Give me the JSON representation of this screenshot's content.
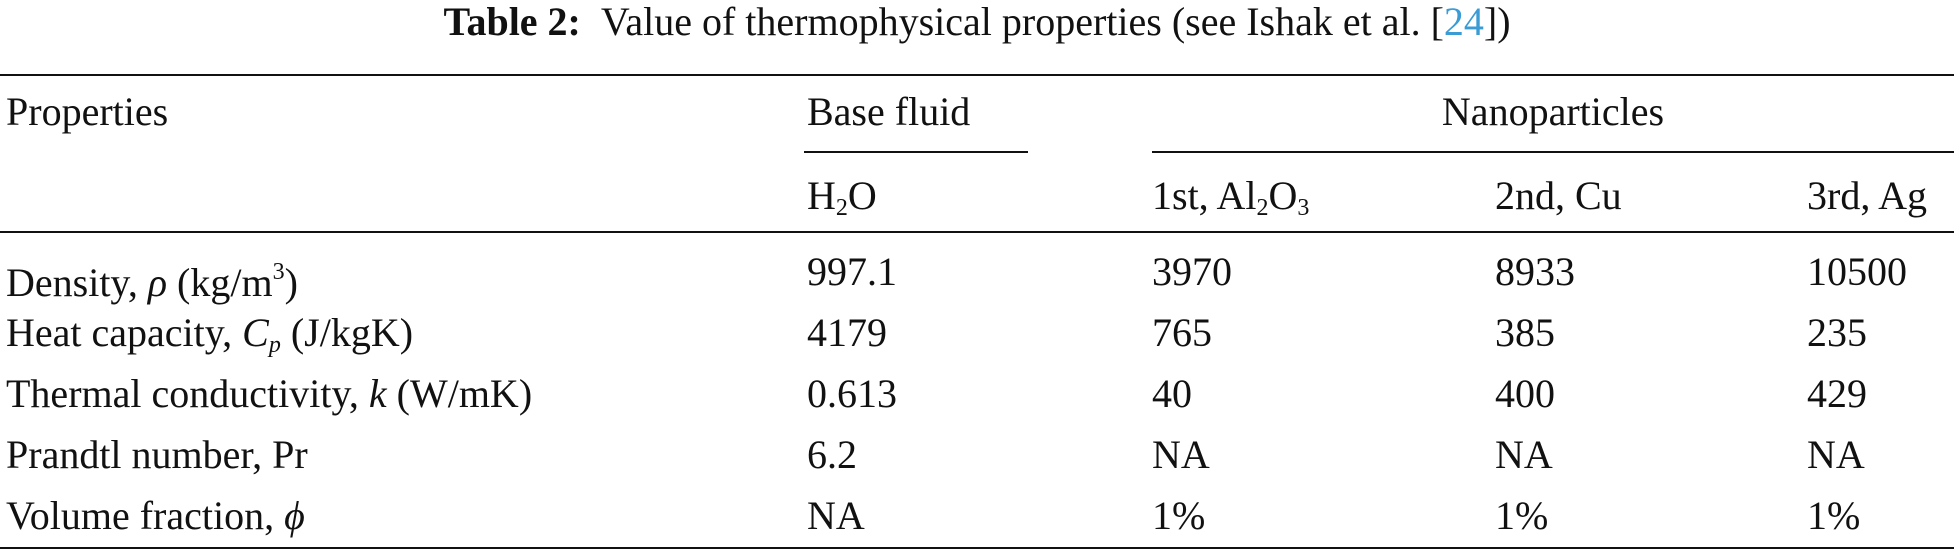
{
  "title": {
    "label": "Table 2:",
    "text": "Value of thermophysical properties (see Ishak et al. [",
    "ref": "24",
    "close": "])"
  },
  "header": {
    "properties": "Properties",
    "base_fluid": "Base fluid",
    "nanoparticles": "Nanoparticles",
    "columns": [
      [
        {
          "t": "H"
        },
        {
          "t": "2",
          "sub": true
        },
        {
          "t": "O"
        }
      ],
      [
        {
          "t": "1st, Al"
        },
        {
          "t": "2",
          "sub": true
        },
        {
          "t": "O"
        },
        {
          "t": "3",
          "sub": true
        }
      ],
      [
        {
          "t": "2nd, Cu"
        }
      ],
      [
        {
          "t": "3rd, Ag"
        }
      ]
    ]
  },
  "rows": [
    {
      "property": [
        {
          "t": "Density, "
        },
        {
          "t": "ρ",
          "i": true
        },
        {
          "t": " (kg/m"
        },
        {
          "t": "3",
          "sup": true
        },
        {
          "t": ")"
        }
      ],
      "values": [
        "997.1",
        "3970",
        "8933",
        "10500"
      ]
    },
    {
      "property": [
        {
          "t": "Heat capacity, "
        },
        {
          "t": "C",
          "i": true
        },
        {
          "t": "p",
          "i": true,
          "sub": true
        },
        {
          "t": " (J/kgK)"
        }
      ],
      "values": [
        "4179",
        "765",
        "385",
        "235"
      ]
    },
    {
      "property": [
        {
          "t": "Thermal conductivity, "
        },
        {
          "t": "k",
          "i": true
        },
        {
          "t": " (W/mK)"
        }
      ],
      "values": [
        "0.613",
        "40",
        "400",
        "429"
      ]
    },
    {
      "property": [
        {
          "t": "Prandtl number, Pr"
        }
      ],
      "values": [
        "6.2",
        "NA",
        "NA",
        "NA"
      ]
    },
    {
      "property": [
        {
          "t": "Volume fraction, "
        },
        {
          "t": "ϕ",
          "i": true
        }
      ],
      "values": [
        "NA",
        "1%",
        "1%",
        "1%"
      ]
    }
  ]
}
